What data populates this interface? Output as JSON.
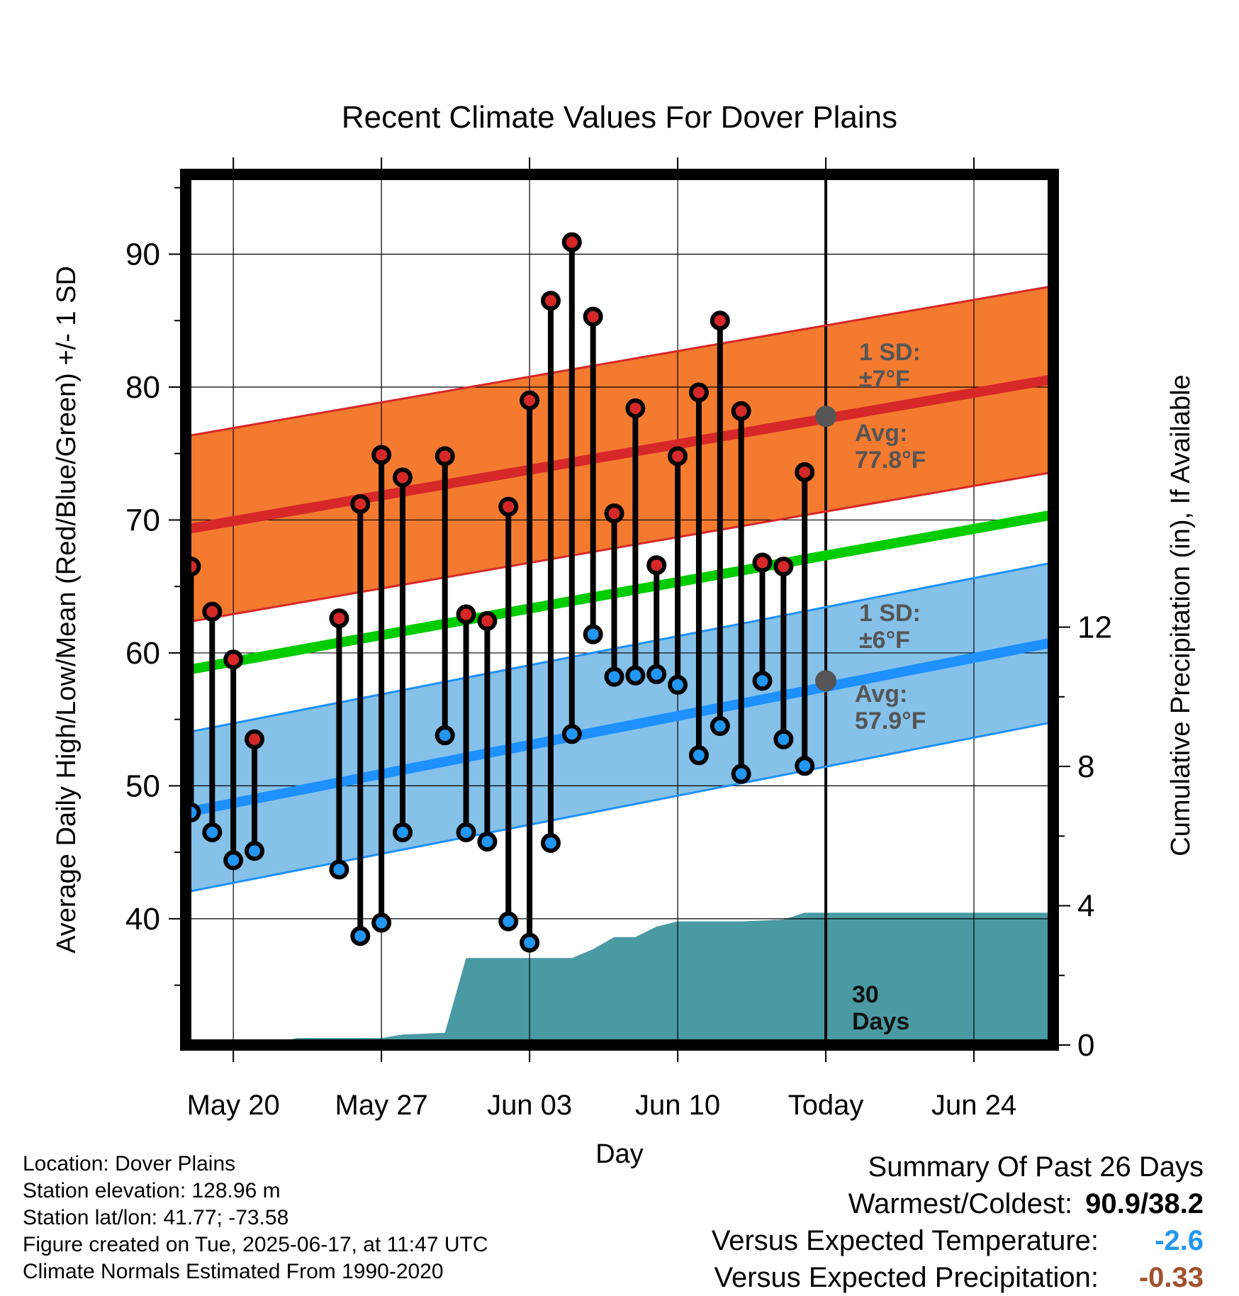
{
  "chart_data": {
    "type": "line",
    "title": "Recent Climate Values For Dover Plains",
    "xlabel": "Day",
    "ylabel": "Average Daily High/Low/Mean (Red/Blue/Green) +/- 1 SD",
    "y2label": "Cumulative Precipitation (in), If Available",
    "x_tick_labels": [
      "May 20",
      "May 27",
      "Jun 03",
      "Jun 10",
      "Today",
      "Jun 24"
    ],
    "x_tick_days": [
      3,
      10,
      17,
      24,
      31,
      38
    ],
    "x_range_days": [
      0.75,
      41.75
    ],
    "ylim": [
      30.5,
      96
    ],
    "y_ticks": [
      40,
      50,
      60,
      70,
      80,
      90
    ],
    "y2lim": [
      0,
      25
    ],
    "y2_ticks": [
      0,
      4,
      8,
      12
    ],
    "today_day": 31,
    "grid": true,
    "normals": {
      "high_avg": [
        69.3,
        80.6
      ],
      "high_sd": 7,
      "mean_avg": [
        58.7,
        70.4
      ],
      "low_avg": [
        48.0,
        60.8
      ],
      "low_sd": 6,
      "day_range": [
        0.75,
        41.75
      ]
    },
    "annotations": {
      "high_sd_label": [
        "1 SD:",
        "±7°F"
      ],
      "high_avg_label": [
        "Avg:",
        "77.8°F"
      ],
      "high_avg_value": 77.8,
      "low_sd_label": [
        "1 SD:",
        "±6°F"
      ],
      "low_avg_label": [
        "Avg:",
        "57.9°F"
      ],
      "low_avg_value": 57.9,
      "days_label": [
        "30",
        "Days"
      ]
    },
    "daily": [
      {
        "day": 1,
        "high": 66.5,
        "low": 48.0
      },
      {
        "day": 2,
        "high": 63.1,
        "low": 46.5
      },
      {
        "day": 3,
        "high": 59.5,
        "low": 44.4
      },
      {
        "day": 4,
        "high": 53.5,
        "low": 45.1
      },
      {
        "day": 8,
        "high": 62.6,
        "low": 43.7
      },
      {
        "day": 9,
        "high": 71.2,
        "low": 38.7
      },
      {
        "day": 10,
        "high": 74.9,
        "low": 39.7
      },
      {
        "day": 11,
        "high": 73.2,
        "low": 46.5
      },
      {
        "day": 13,
        "high": 74.8,
        "low": 53.8
      },
      {
        "day": 14,
        "high": 62.9,
        "low": 46.5
      },
      {
        "day": 15,
        "high": 62.4,
        "low": 45.8
      },
      {
        "day": 16,
        "high": 71.0,
        "low": 39.8
      },
      {
        "day": 17,
        "high": 79.0,
        "low": 38.2
      },
      {
        "day": 18,
        "high": 86.5,
        "low": 45.7
      },
      {
        "day": 19,
        "high": 90.9,
        "low": 53.9
      },
      {
        "day": 20,
        "high": 85.3,
        "low": 61.4
      },
      {
        "day": 21,
        "high": 70.5,
        "low": 58.2
      },
      {
        "day": 22,
        "high": 78.4,
        "low": 58.3
      },
      {
        "day": 23,
        "high": 66.6,
        "low": 58.4
      },
      {
        "day": 24,
        "high": 74.8,
        "low": 57.6
      },
      {
        "day": 25,
        "high": 79.6,
        "low": 52.3
      },
      {
        "day": 26,
        "high": 85.0,
        "low": 54.5
      },
      {
        "day": 27,
        "high": 78.2,
        "low": 50.9
      },
      {
        "day": 28,
        "high": 66.8,
        "low": 57.9
      },
      {
        "day": 29,
        "high": 66.5,
        "low": 53.5
      },
      {
        "day": 30,
        "high": 73.6,
        "low": 51.5
      }
    ],
    "precip_cumulative": {
      "days": [
        0.75,
        4.75,
        6,
        10,
        11,
        13,
        14,
        19,
        20,
        21,
        22,
        23,
        24,
        27,
        29,
        30,
        41.75
      ],
      "values": [
        0,
        0,
        0.2,
        0.2,
        0.3,
        0.35,
        2.5,
        2.5,
        2.75,
        3.1,
        3.1,
        3.4,
        3.55,
        3.55,
        3.6,
        3.8,
        3.8
      ]
    },
    "colors": {
      "high_band": "#f47a30",
      "high_line": "#d62828",
      "low_band": "#85c1e9",
      "low_line": "#1e90ff",
      "mean_line": "#00cc00",
      "precip_fill": "#4a9aa3",
      "high_marker": "#d62828",
      "low_marker": "#2196f3",
      "annotation_text": "#555555",
      "today_marker": "#555555"
    }
  },
  "info": {
    "location": "Location: Dover Plains",
    "elevation": "Station elevation: 128.96 m",
    "latlon": "Station lat/lon: 41.77; -73.58",
    "created": "Figure created on Tue, 2025-06-17, at 11:47 UTC",
    "normals": "Climate Normals Estimated From 1990-2020"
  },
  "summary": {
    "title": "Summary Of Past 26 Days",
    "warmest_label": "Warmest/Coldest:",
    "warmest_value": "90.9/38.2",
    "temp_label": "Versus Expected Temperature:",
    "temp_value": "-2.6",
    "temp_color": "#2196f3",
    "precip_label": "Versus Expected Precipitation:",
    "precip_value": "-0.33",
    "precip_color": "#a0522d"
  }
}
